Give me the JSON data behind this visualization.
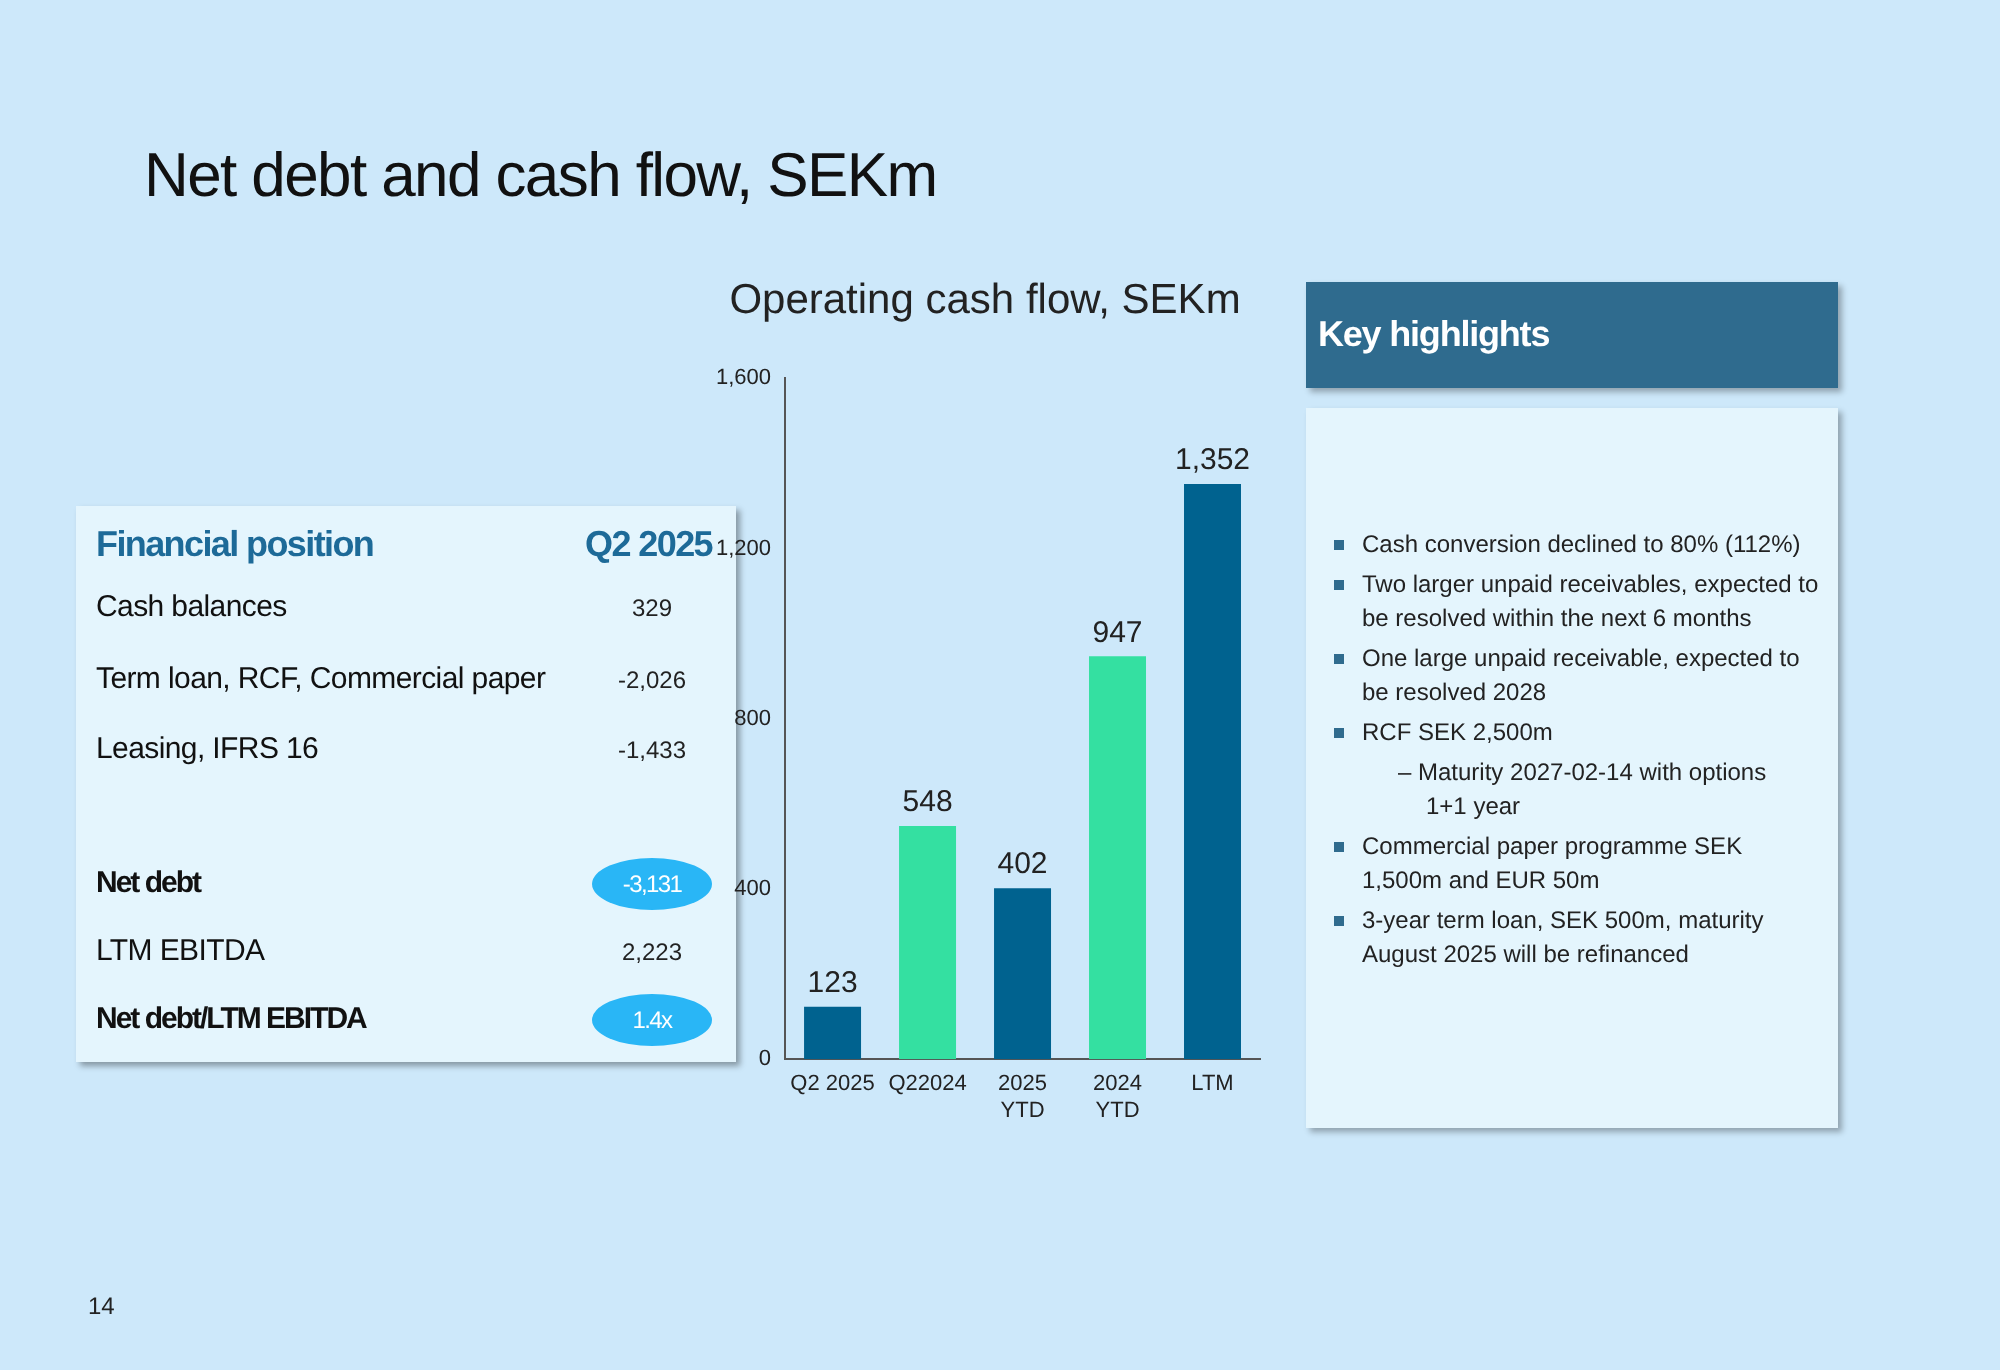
{
  "chart_data": [
    {
      "type": "other",
      "title": "Net debt and cash flow, SEKm",
      "annotations": [
        "14"
      ]
    },
    {
      "type": "other",
      "title": "Financial position",
      "subtitle": "Q2 2025",
      "categories": [
        "Cash balances",
        "Term loan, RCF, Commercial paper",
        "Leasing, IFRS 16",
        "Net debt",
        "LTM EBITDA",
        "Net debt/LTM EBITDA"
      ],
      "value_labels": [
        "329",
        "-2,026",
        "-1,433",
        "-3,131",
        "2,223",
        "1.4x"
      ],
      "colors": [
        null,
        null,
        null,
        "#29b6f6",
        null,
        "#29b6f6"
      ]
    },
    {
      "type": "bar",
      "title": "Operating cash flow, SEKm",
      "categories": [
        "Q2 2025",
        "Q22024",
        "2025\nYTD",
        "2024\nYTD",
        "LTM"
      ],
      "values": [
        123,
        548,
        402,
        947,
        1352
      ],
      "value_labels": [
        "123",
        "548",
        "402",
        "947",
        "1,352"
      ],
      "colors": [
        "#00628f",
        "#34e0a1",
        "#00628f",
        "#34e0a1",
        "#00628f"
      ],
      "ylim": [
        0,
        1600
      ],
      "yticks": [
        0,
        400,
        800,
        {
          "value": 1200,
          "label": "1,200"
        },
        {
          "value": 1600,
          "label": "1,600"
        }
      ]
    },
    {
      "type": "other",
      "title": "Key highlights",
      "annotations": [
        "Cash conversion declined to 80% (112%)",
        "Two larger unpaid receivables, expected to be resolved within the next 6 months",
        "One large unpaid receivable, expected to  be resolved 2028",
        "RCF SEK 2,500m\n– Maturity 2027-02-14 with options 1+1 year",
        "Commercial paper programme SEK 1,500m and EUR 50m",
        "3-year term loan, SEK 500m, maturity August 2025 will be refinanced"
      ]
    }
  ]
}
